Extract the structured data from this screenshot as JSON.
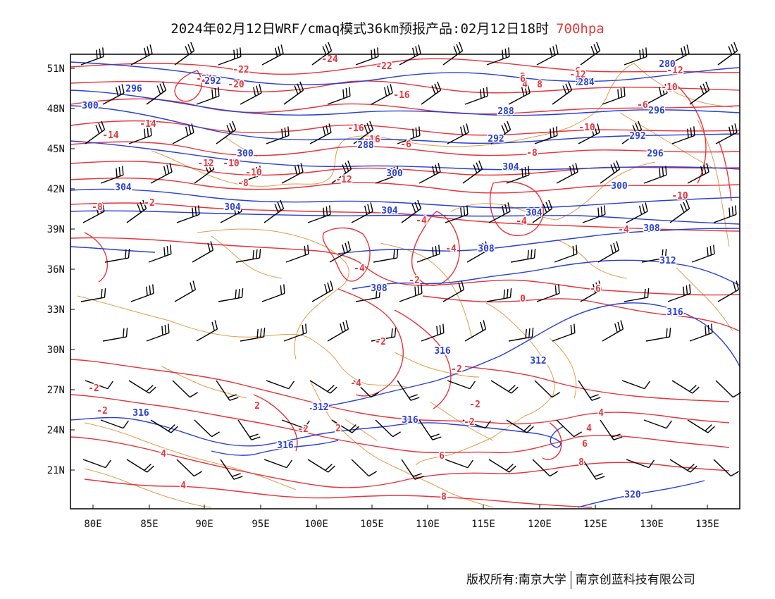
{
  "title": {
    "main": "2024年02月12日WRF/cmaq模式36km预报产品:02月12日18时",
    "level": "700hpa"
  },
  "axes": {
    "lon_ticks": [
      "80E",
      "85E",
      "90E",
      "95E",
      "100E",
      "105E",
      "110E",
      "115E",
      "120E",
      "125E",
      "130E",
      "135E"
    ],
    "lat_ticks": [
      "51N",
      "48N",
      "45N",
      "42N",
      "39N",
      "36N",
      "33N",
      "30N",
      "27N",
      "24N",
      "21N"
    ]
  },
  "colors": {
    "temperature": "#e8333b",
    "height": "#2a3fd8",
    "border": "#e39b4b",
    "wind": "#000000"
  },
  "temperature_labels": [
    "-24",
    "-22",
    "-24",
    "-20",
    "-22",
    "-16",
    "-16",
    "-14",
    "-12",
    "-10",
    "-10",
    "-16",
    "-8",
    "-6",
    "-14",
    "-12",
    "-10",
    "-8",
    "-4",
    "-4",
    "-8",
    "-2",
    "-4",
    "-4",
    "-4",
    "-2",
    "-6",
    "0",
    "-2",
    "-2",
    "-4",
    "-2",
    "-2",
    "2",
    "-2",
    "-2",
    "-2",
    "2",
    "4",
    "4",
    "4",
    "6",
    "6",
    "8",
    "8",
    "4",
    "6",
    "8",
    "2",
    "4",
    "6",
    "-8",
    "-6",
    "-12",
    "-10",
    "-10",
    "-12"
  ],
  "height_labels": [
    "296",
    "292",
    "300",
    "288",
    "300",
    "284",
    "292",
    "300",
    "304",
    "300",
    "304",
    "308",
    "304",
    "308",
    "304",
    "308",
    "312",
    "316",
    "312",
    "316",
    "316",
    "316",
    "316",
    "320",
    "292",
    "296",
    "296",
    "288",
    "284",
    "280",
    "304",
    "312"
  ],
  "credit": {
    "left": "版权所有:南京大学",
    "right": "南京创蓝科技有限公司"
  }
}
